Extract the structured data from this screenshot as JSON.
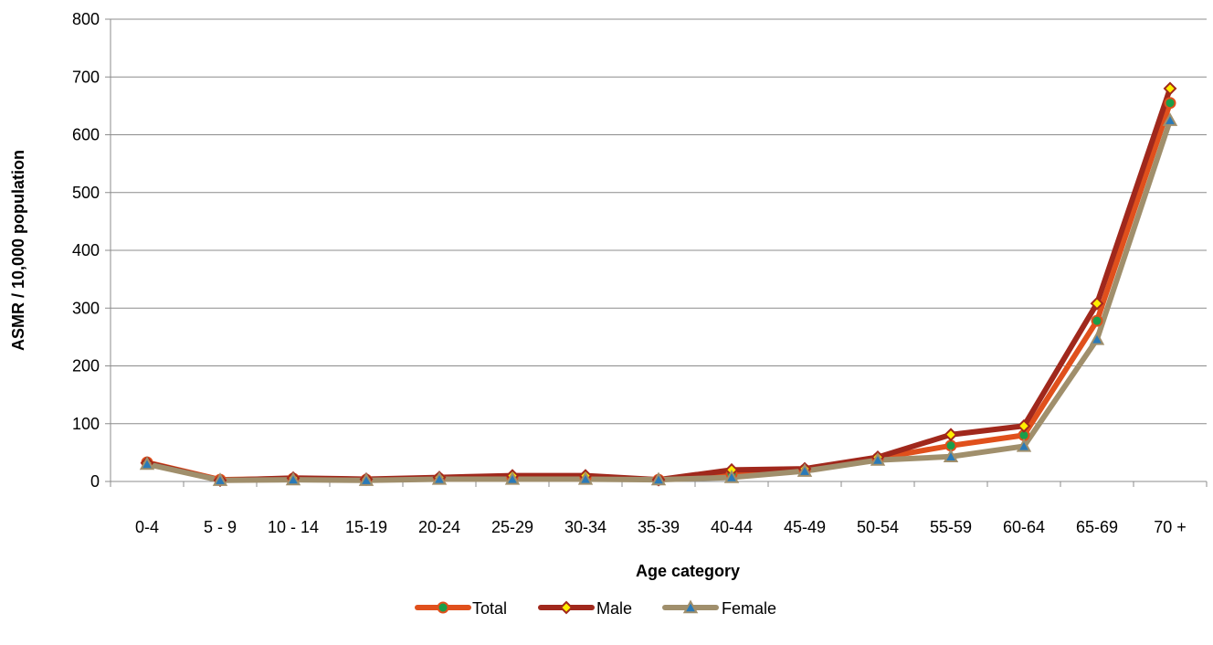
{
  "chart_data": {
    "type": "line",
    "title": "",
    "xlabel": "Age category",
    "ylabel": "ASMR / 10,000 population",
    "ylim": [
      0,
      800
    ],
    "yticks": [
      0,
      100,
      200,
      300,
      400,
      500,
      600,
      700,
      800
    ],
    "ytick_labels": [
      "0",
      "100",
      "200",
      "300",
      "400",
      "500",
      "600",
      "700",
      "800"
    ],
    "grid": "horizontal",
    "legend_position": "bottom",
    "categories": [
      "0-4",
      "5 - 9",
      "10 - 14",
      "15-19",
      "20-24",
      "25-29",
      "30-34",
      "35-39",
      "40-44",
      "45-49",
      "50-54",
      "55-59",
      "60-64",
      "65-69",
      "70 +"
    ],
    "series": [
      {
        "name": "Total",
        "color": "#e0501c",
        "marker": "circle",
        "marker_color": "#1a9e4a",
        "values": [
          33,
          3,
          5,
          3,
          5,
          7,
          7,
          3,
          13,
          20,
          40,
          62,
          80,
          278,
          655
        ]
      },
      {
        "name": "Male",
        "color": "#a0281c",
        "marker": "diamond",
        "marker_color": "#ffee00",
        "values": [
          32,
          2,
          6,
          4,
          7,
          10,
          10,
          3,
          20,
          22,
          42,
          81,
          96,
          308,
          680
        ]
      },
      {
        "name": "Female",
        "color": "#a08f6c",
        "marker": "triangle",
        "marker_color": "#2a7ab8",
        "values": [
          30,
          2,
          3,
          2,
          4,
          4,
          4,
          3,
          7,
          18,
          37,
          43,
          61,
          246,
          625
        ]
      }
    ]
  }
}
